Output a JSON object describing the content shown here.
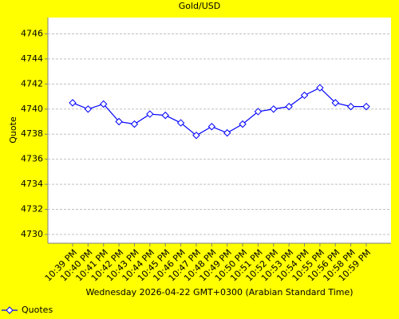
{
  "chart_data": {
    "type": "line",
    "title": "Gold/USD",
    "x_label": "Wednesday 2026-04-22 GMT+0300 (Arabian Standard Time)",
    "y_label": "Quote",
    "categories": [
      "10:39 PM",
      "10:40 PM",
      "10:41 PM",
      "10:42 PM",
      "10:43 PM",
      "10:44 PM",
      "10:45 PM",
      "10:46 PM",
      "10:47 PM",
      "10:48 PM",
      "10:49 PM",
      "10:50 PM",
      "10:51 PM",
      "10:52 PM",
      "10:53 PM",
      "10:54 PM",
      "10:55 PM",
      "10:56 PM",
      "10:58 PM",
      "10:59 PM"
    ],
    "series": [
      {
        "name": "Quotes",
        "color": "#0000ff",
        "values": [
          4740.5,
          4740.0,
          4740.4,
          4739.0,
          4738.8,
          4739.6,
          4739.5,
          4738.9,
          4737.9,
          4738.6,
          4738.1,
          4738.8,
          4739.8,
          4740.0,
          4740.2,
          4741.1,
          4741.7,
          4740.5,
          4740.2,
          4740.2
        ]
      }
    ],
    "ylim": [
      4729.3,
      4747.3
    ],
    "yticks": [
      4730,
      4732,
      4734,
      4736,
      4738,
      4740,
      4742,
      4744,
      4746
    ],
    "grid": true,
    "legend": "bottom-left"
  }
}
